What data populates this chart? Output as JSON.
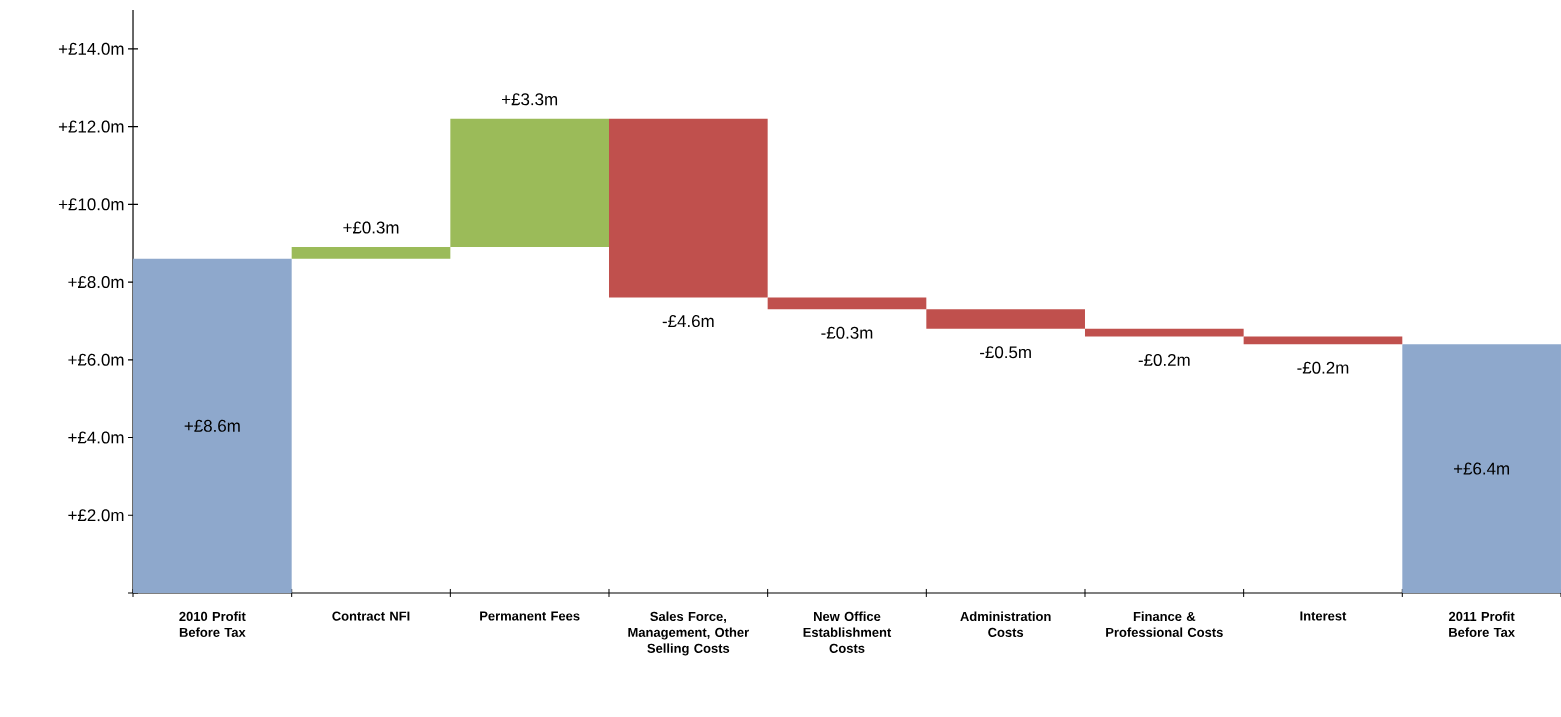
{
  "chart_data": {
    "type": "bar",
    "categories": [
      "2010 Profit Before Tax",
      "Contract NFI",
      "Permanent Fees",
      "Sales Force, Management, Other Selling Costs",
      "New Office Establishment Costs",
      "Administration Costs",
      "Finance & Professional Costs",
      "Interest",
      "2011 Profit Before Tax"
    ],
    "base": [
      0,
      8.6,
      8.9,
      12.2,
      7.6,
      7.3,
      6.8,
      6.6,
      0
    ],
    "values": [
      8.6,
      0.3,
      3.3,
      -4.6,
      -0.3,
      -0.5,
      -0.2,
      -0.2,
      6.4
    ],
    "colors": [
      "#8ea8cc",
      "#9bbb59",
      "#9bbb59",
      "#c0504d",
      "#c0504d",
      "#c0504d",
      "#c0504d",
      "#c0504d",
      "#8ea8cc"
    ],
    "value_labels": [
      "+£8.6m",
      "+£0.3m",
      "+£3.3m",
      "-£4.6m",
      "-£0.3m",
      "-£0.5m",
      "-£0.2m",
      "-£0.2m",
      "+£6.4m"
    ],
    "ylim": [
      0,
      15
    ],
    "yticks": [
      {
        "value": 0,
        "label": null
      },
      {
        "value": 2,
        "label": "+£2.0m"
      },
      {
        "value": 4,
        "label": "+£4.0m"
      },
      {
        "value": 6,
        "label": "+£6.0m"
      },
      {
        "value": 8,
        "label": "+£8.0m"
      },
      {
        "value": 10,
        "label": "+£10.0m"
      },
      {
        "value": 12,
        "label": "+£12.0m"
      },
      {
        "value": 14,
        "label": "+£14.0m"
      }
    ],
    "grid": false
  }
}
